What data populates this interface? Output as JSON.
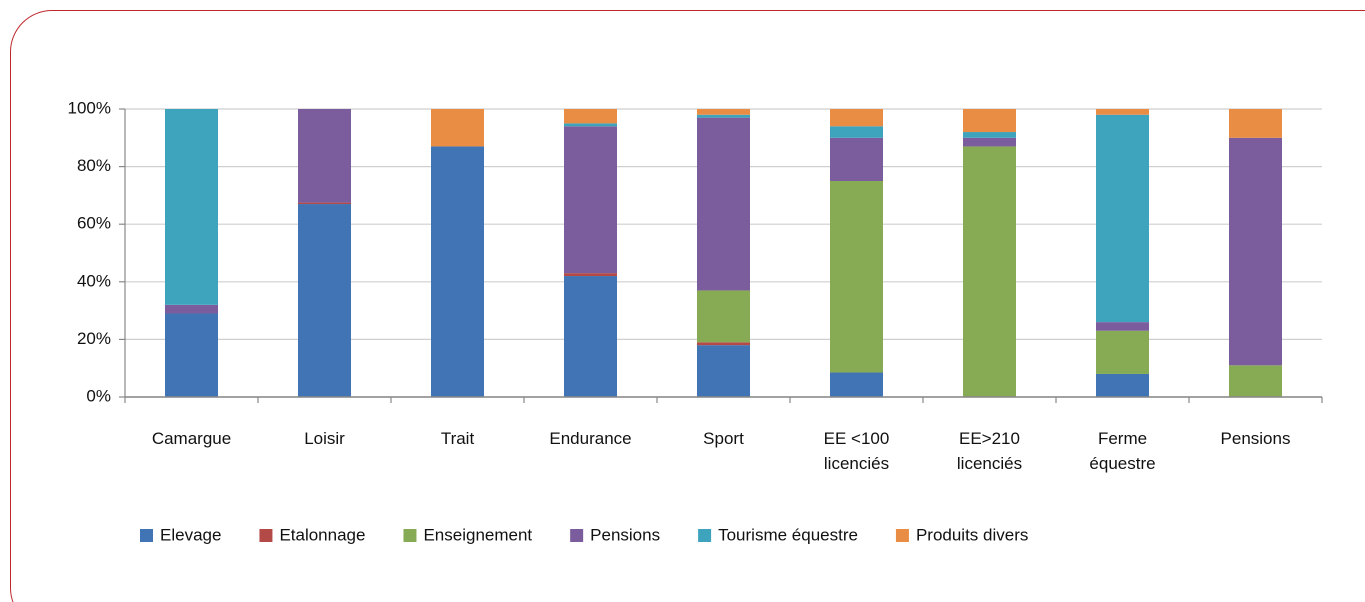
{
  "chart_data": {
    "type": "bar",
    "stacked": true,
    "categories": [
      "Camargue",
      "Loisir",
      "Trait",
      "Endurance",
      "Sport",
      "EE <100 licenciés",
      "EE>210 licenciés",
      "Ferme équestre",
      "Pensions"
    ],
    "series": [
      {
        "name": "Elevage",
        "color": "#4174b5",
        "values": [
          29,
          67,
          87,
          42,
          18,
          8.5,
          0,
          8,
          0
        ]
      },
      {
        "name": "Etalonnage",
        "color": "#b34a47",
        "values": [
          0,
          0.5,
          0,
          1,
          1,
          0,
          0,
          0,
          0
        ]
      },
      {
        "name": "Enseignement",
        "color": "#87ab55",
        "values": [
          0,
          0,
          0,
          0,
          18,
          66.5,
          87,
          15,
          11
        ]
      },
      {
        "name": "Pensions",
        "color": "#7b5d9e",
        "values": [
          3,
          32.5,
          0,
          51,
          60,
          15,
          3,
          3,
          79
        ]
      },
      {
        "name": "Tourisme équestre",
        "color": "#3ea3bc",
        "values": [
          68,
          0,
          0,
          1,
          1,
          4,
          2,
          72,
          0
        ]
      },
      {
        "name": "Produits divers",
        "color": "#e98d44",
        "values": [
          0,
          0,
          13,
          5,
          2,
          6,
          8,
          2,
          10
        ]
      }
    ],
    "ylim": [
      0,
      100
    ],
    "yticks": [
      {
        "value": 0,
        "label": "0%"
      },
      {
        "value": 20,
        "label": "20%"
      },
      {
        "value": 40,
        "label": "40%"
      },
      {
        "value": 60,
        "label": "60%"
      },
      {
        "value": 80,
        "label": "80%"
      },
      {
        "value": 100,
        "label": "100%"
      }
    ],
    "grid": true,
    "legend": "bottom"
  }
}
